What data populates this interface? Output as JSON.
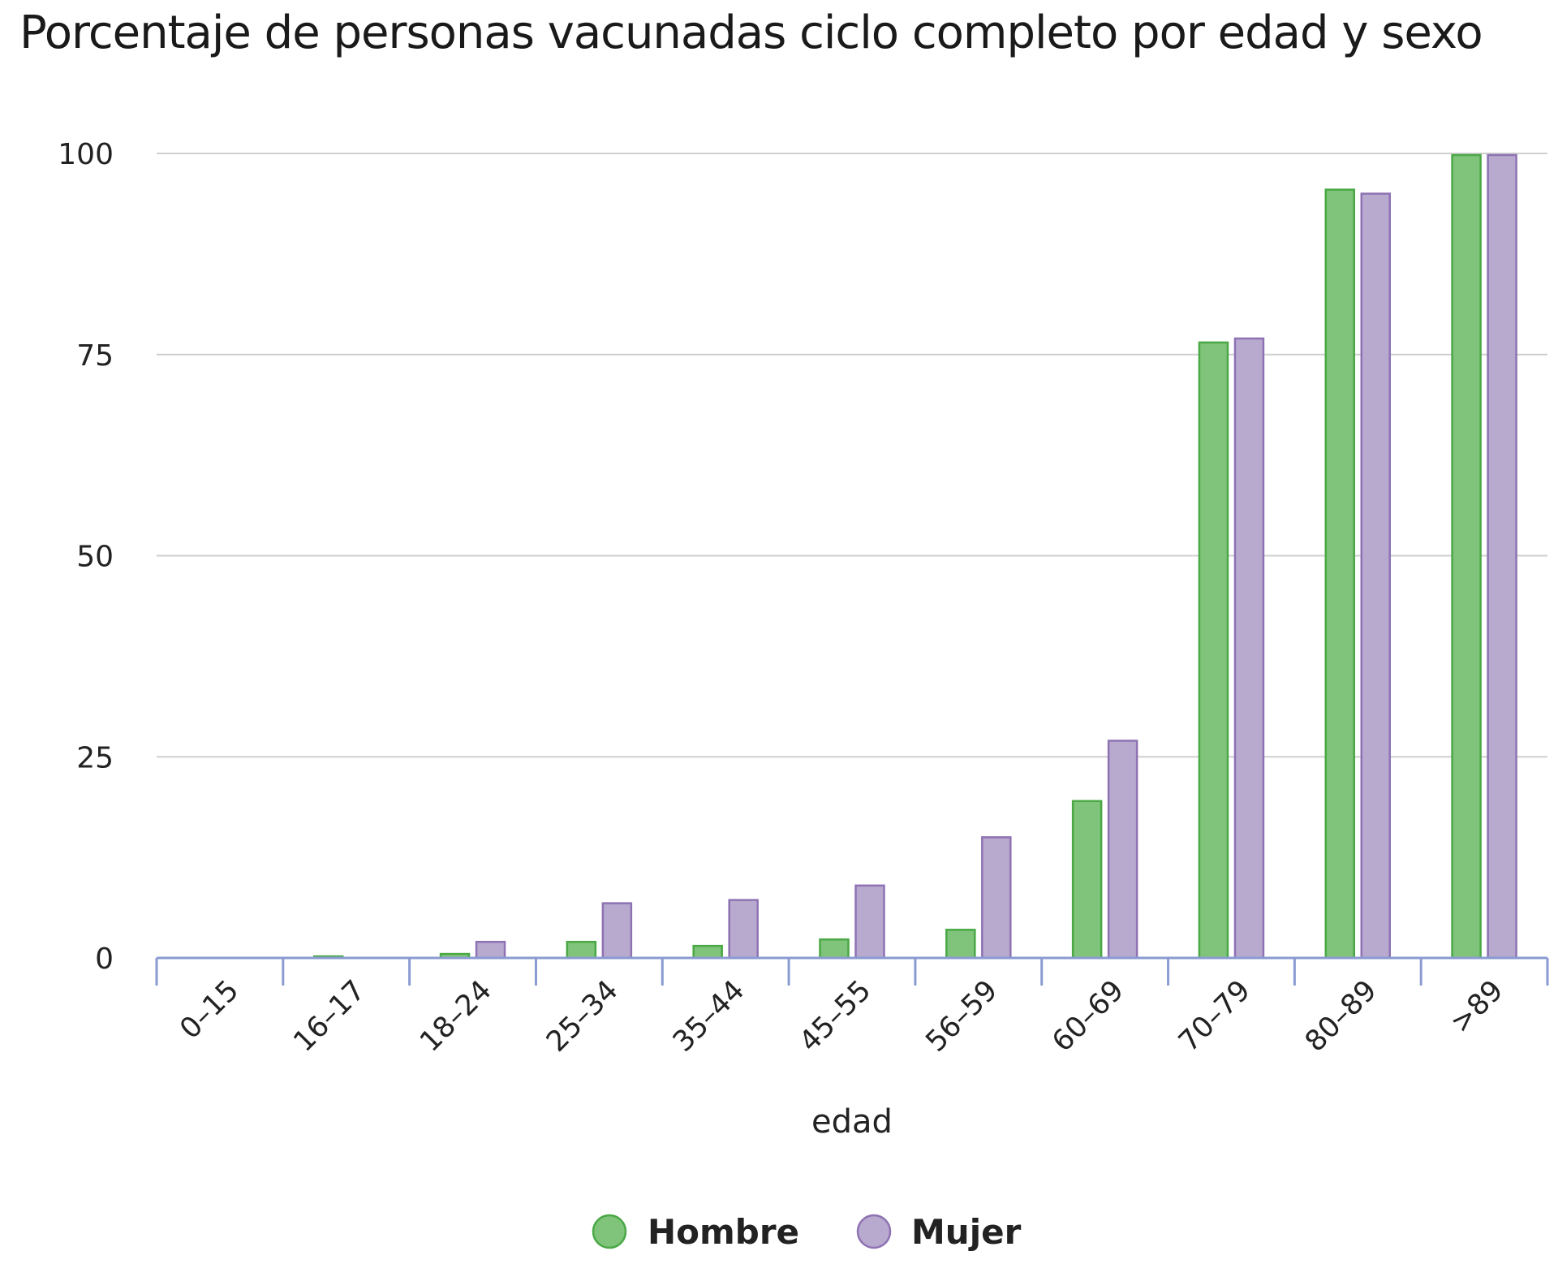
{
  "chart_data": {
    "type": "bar",
    "title": "Porcentaje de personas vacunadas ciclo completo por edad y sexo",
    "xlabel": "edad",
    "ylabel": "",
    "ylim": [
      0,
      100
    ],
    "yticks": [
      0,
      25,
      50,
      75,
      100
    ],
    "grid": true,
    "legend_position": "bottom-center",
    "categories": [
      "0–15",
      "16–17",
      "18–24",
      "25–34",
      "35–44",
      "45–55",
      "56–59",
      "60–69",
      "70–79",
      "80–89",
      ">89"
    ],
    "series": [
      {
        "name": "Hombre",
        "color": "#7fc47a",
        "stroke": "#4aa845",
        "values": [
          0,
          0.2,
          0.5,
          2,
          1.5,
          2.3,
          3.5,
          19.5,
          76.5,
          95.5,
          99.8
        ]
      },
      {
        "name": "Mujer",
        "color": "#b8a9cf",
        "stroke": "#8e72b3",
        "values": [
          0,
          0,
          2,
          6.8,
          7.2,
          9,
          15,
          27,
          77,
          95,
          99.8
        ]
      }
    ]
  }
}
